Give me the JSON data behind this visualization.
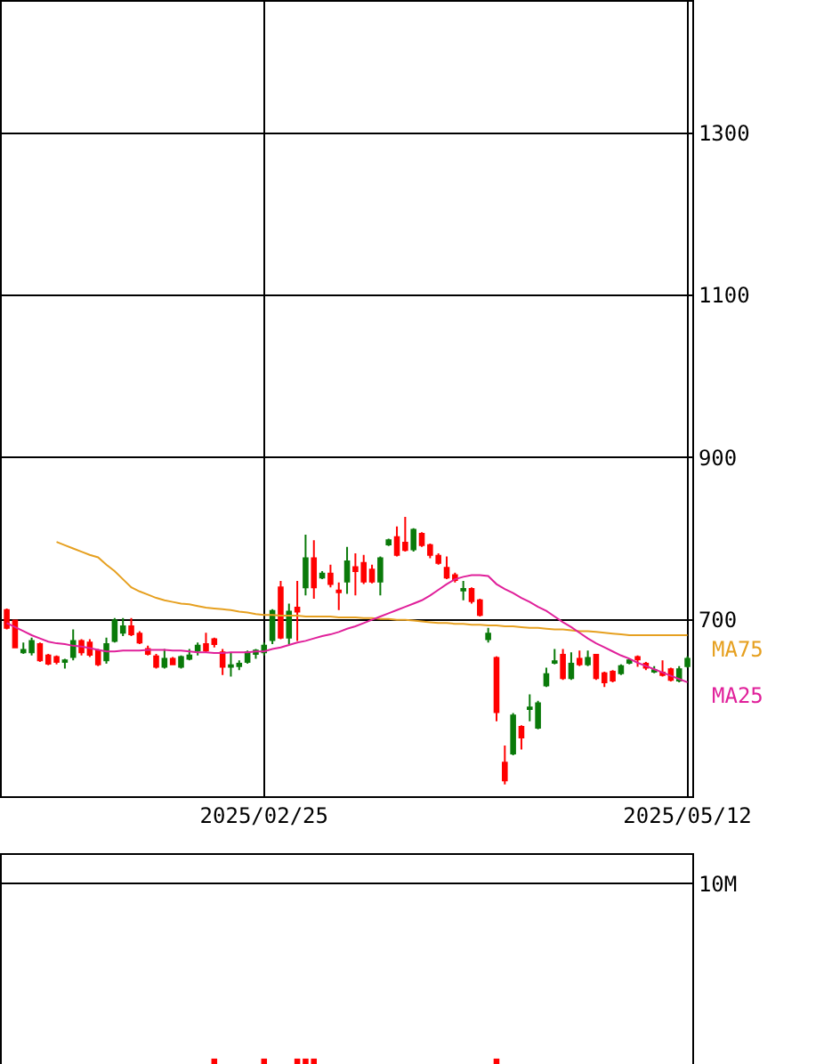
{
  "chart_data": [
    {
      "type": "candlestick",
      "categories": [
        null,
        null,
        null,
        null,
        null,
        null,
        null,
        null,
        null,
        null,
        null,
        null,
        null,
        null,
        null,
        null,
        null,
        null,
        null,
        null,
        null,
        null,
        null,
        null,
        null,
        null,
        null,
        null,
        null,
        null,
        null,
        "2025/02/25",
        null,
        null,
        null,
        null,
        null,
        null,
        null,
        null,
        null,
        null,
        null,
        null,
        null,
        null,
        null,
        null,
        null,
        null,
        null,
        null,
        null,
        null,
        null,
        null,
        null,
        null,
        null,
        null,
        null,
        null,
        null,
        null,
        null,
        null,
        null,
        null,
        null,
        null,
        null,
        null,
        null,
        null,
        null,
        null,
        null,
        null,
        null,
        null,
        null,
        null,
        "2025/05/12"
      ],
      "ohlc": [
        [
          712,
          714,
          688,
          690
        ],
        [
          699,
          700,
          665,
          666
        ],
        [
          660,
          672,
          658,
          663
        ],
        [
          660,
          678,
          656,
          674
        ],
        [
          670,
          672,
          648,
          650
        ],
        [
          656,
          658,
          644,
          646
        ],
        [
          654,
          656,
          645,
          648
        ],
        [
          648,
          652,
          640,
          650
        ],
        [
          654,
          688,
          650,
          674
        ],
        [
          674,
          676,
          656,
          660
        ],
        [
          672,
          676,
          654,
          657
        ],
        [
          662,
          664,
          643,
          645
        ],
        [
          650,
          678,
          646,
          670
        ],
        [
          674,
          702,
          672,
          699
        ],
        [
          684,
          702,
          680,
          692
        ],
        [
          692,
          702,
          680,
          682
        ],
        [
          683,
          686,
          670,
          672
        ],
        [
          664,
          668,
          656,
          658
        ],
        [
          655,
          658,
          640,
          642
        ],
        [
          642,
          664,
          640,
          652
        ],
        [
          652,
          654,
          644,
          645
        ],
        [
          642,
          656,
          640,
          654
        ],
        [
          652,
          664,
          650,
          656
        ],
        [
          662,
          672,
          656,
          668
        ],
        [
          670,
          684,
          660,
          662
        ],
        [
          676,
          678,
          666,
          670
        ],
        [
          660,
          664,
          632,
          642
        ],
        [
          642,
          660,
          630,
          644
        ],
        [
          643,
          650,
          638,
          646
        ],
        [
          648,
          662,
          646,
          660
        ],
        [
          658,
          664,
          652,
          662
        ],
        [
          660,
          672,
          656,
          668
        ],
        [
          675,
          713,
          670,
          711
        ],
        [
          740,
          748,
          676,
          678
        ],
        [
          678,
          720,
          670,
          710
        ],
        [
          715,
          748,
          674,
          710
        ],
        [
          740,
          805,
          730,
          776
        ],
        [
          776,
          798,
          726,
          740
        ],
        [
          752,
          760,
          750,
          757
        ],
        [
          757,
          768,
          740,
          744
        ],
        [
          736,
          746,
          712,
          734
        ],
        [
          747,
          790,
          732,
          772
        ],
        [
          765,
          782,
          730,
          760
        ],
        [
          770,
          780,
          744,
          747
        ],
        [
          762,
          768,
          745,
          747
        ],
        [
          747,
          778,
          730,
          776
        ],
        [
          793,
          800,
          791,
          798
        ],
        [
          802,
          815,
          778,
          780
        ],
        [
          795,
          827,
          784,
          786
        ],
        [
          787,
          813,
          784,
          811
        ],
        [
          806,
          808,
          790,
          792
        ],
        [
          792,
          794,
          776,
          780
        ],
        [
          779,
          782,
          768,
          770
        ],
        [
          764,
          778,
          750,
          752
        ],
        [
          755,
          758,
          746,
          749
        ],
        [
          736,
          748,
          724,
          738
        ],
        [
          738,
          740,
          720,
          723
        ],
        [
          724,
          726,
          704,
          706
        ],
        [
          676,
          690,
          672,
          683
        ],
        [
          653,
          655,
          575,
          586
        ],
        [
          524,
          545,
          497,
          502
        ],
        [
          535,
          585,
          533,
          582
        ],
        [
          568,
          570,
          540,
          555
        ],
        [
          590,
          608,
          575,
          592
        ],
        [
          567,
          600,
          565,
          597
        ],
        [
          619,
          641,
          617,
          633
        ],
        [
          647,
          664,
          645,
          649
        ],
        [
          657,
          664,
          626,
          628
        ],
        [
          628,
          660,
          626,
          646
        ],
        [
          652,
          662,
          643,
          645
        ],
        [
          645,
          662,
          643,
          653
        ],
        [
          657,
          658,
          626,
          628
        ],
        [
          634,
          636,
          617,
          623
        ],
        [
          636,
          638,
          623,
          625
        ],
        [
          634,
          645,
          632,
          643
        ],
        [
          647,
          652,
          645,
          650
        ],
        [
          654,
          656,
          642,
          651
        ],
        [
          646,
          648,
          638,
          641
        ],
        [
          636,
          643,
          634,
          638
        ],
        [
          635,
          650,
          630,
          632
        ],
        [
          639,
          641,
          624,
          626
        ],
        [
          625,
          643,
          623,
          639
        ],
        [
          643,
          655,
          641,
          652
        ]
      ],
      "colors": [
        "#ff0000",
        "#ff0000",
        "#0a7a0a",
        "#0a7a0a",
        "#ff0000",
        "#ff0000",
        "#ff0000",
        "#0a7a0a",
        "#0a7a0a",
        "#ff0000",
        "#ff0000",
        "#ff0000",
        "#0a7a0a",
        "#0a7a0a",
        "#0a7a0a",
        "#ff0000",
        "#ff0000",
        "#ff0000",
        "#ff0000",
        "#0a7a0a",
        "#ff0000",
        "#0a7a0a",
        "#0a7a0a",
        "#0a7a0a",
        "#ff0000",
        "#ff0000",
        "#ff0000",
        "#0a7a0a",
        "#0a7a0a",
        "#0a7a0a",
        "#0a7a0a",
        "#0a7a0a",
        "#0a7a0a",
        "#ff0000",
        "#0a7a0a",
        "#ff0000",
        "#0a7a0a",
        "#ff0000",
        "#0a7a0a",
        "#ff0000",
        "#ff0000",
        "#0a7a0a",
        "#ff0000",
        "#ff0000",
        "#ff0000",
        "#0a7a0a",
        "#0a7a0a",
        "#ff0000",
        "#ff0000",
        "#0a7a0a",
        "#ff0000",
        "#ff0000",
        "#ff0000",
        "#ff0000",
        "#ff0000",
        "#0a7a0a",
        "#ff0000",
        "#ff0000",
        "#0a7a0a",
        "#ff0000",
        "#ff0000",
        "#0a7a0a",
        "#ff0000",
        "#0a7a0a",
        "#0a7a0a",
        "#0a7a0a",
        "#0a7a0a",
        "#ff0000",
        "#0a7a0a",
        "#ff0000",
        "#0a7a0a",
        "#ff0000",
        "#ff0000",
        "#ff0000",
        "#0a7a0a",
        "#0a7a0a",
        "#ff0000",
        "#ff0000",
        "#0a7a0a",
        "#ff0000",
        "#ff0000",
        "#0a7a0a",
        "#0a7a0a"
      ],
      "series": [
        {
          "type": "line",
          "name": "MA75",
          "color": "#e6a020",
          "values": [
            null,
            null,
            null,
            null,
            null,
            null,
            796,
            792,
            788,
            784,
            780,
            777,
            768,
            760,
            750,
            740,
            735,
            731,
            727,
            724,
            722,
            720,
            719,
            717,
            715,
            714,
            713,
            712,
            710,
            709,
            707,
            706,
            706,
            705,
            705,
            705,
            704,
            704,
            704,
            704,
            703,
            703,
            703,
            702,
            702,
            701,
            701,
            700,
            700,
            699,
            698,
            697,
            696,
            696,
            695,
            695,
            694,
            694,
            693,
            693,
            692,
            692,
            691,
            690,
            690,
            689,
            688,
            688,
            687,
            686,
            686,
            685,
            684,
            683,
            682,
            681,
            681,
            681,
            681,
            681,
            681,
            681,
            681
          ]
        },
        {
          "type": "line",
          "name": "MA25",
          "color": "#e0209a",
          "values": [
            696,
            691,
            686,
            681,
            677,
            673,
            671,
            670,
            668,
            667,
            665,
            663,
            661,
            661,
            662,
            662,
            662,
            663,
            663,
            663,
            662,
            662,
            661,
            660,
            660,
            659,
            659,
            660,
            660,
            660,
            661,
            661,
            664,
            666,
            669,
            672,
            674,
            677,
            680,
            682,
            685,
            689,
            692,
            696,
            700,
            704,
            708,
            712,
            716,
            720,
            724,
            730,
            737,
            744,
            750,
            753,
            755,
            755,
            754,
            744,
            738,
            733,
            727,
            722,
            716,
            711,
            704,
            697,
            691,
            684,
            677,
            671,
            666,
            661,
            656,
            652,
            647,
            643,
            639,
            635,
            631,
            627,
            623
          ]
        }
      ],
      "ylim": [
        483,
        1462
      ],
      "yticks": [
        700,
        900,
        1100,
        1300
      ],
      "grid": true
    },
    {
      "type": "bar",
      "categories": [
        null,
        null,
        null,
        null,
        null,
        null,
        null,
        null,
        null,
        null,
        null,
        null,
        null,
        null,
        null,
        null,
        null,
        null,
        null,
        null,
        null,
        null,
        null,
        null,
        null,
        null,
        null,
        null,
        null,
        null,
        null,
        "2025/02/25",
        null,
        null,
        null,
        null,
        null,
        null,
        null,
        null,
        null,
        null,
        null,
        null,
        null,
        null,
        null,
        null,
        null,
        null,
        null,
        null,
        null,
        null,
        null,
        null,
        null,
        null,
        null,
        null,
        null,
        null,
        null,
        null,
        null,
        null,
        null,
        null,
        null,
        null,
        null,
        null,
        null,
        null,
        null,
        null,
        null,
        null,
        null,
        null,
        null,
        null,
        "2025/05/12"
      ],
      "values": [
        null,
        null,
        null,
        null,
        null,
        null,
        null,
        null,
        null,
        null,
        null,
        null,
        null,
        null,
        null,
        null,
        null,
        null,
        null,
        null,
        null,
        null,
        null,
        null,
        null,
        300000,
        null,
        null,
        null,
        null,
        null,
        300000,
        null,
        null,
        null,
        300000,
        300000,
        300000,
        null,
        null,
        null,
        null,
        null,
        null,
        null,
        null,
        null,
        null,
        null,
        null,
        null,
        null,
        null,
        null,
        null,
        null,
        null,
        null,
        null,
        300000,
        null,
        null,
        null,
        null,
        null,
        null,
        null,
        null,
        null,
        null,
        null,
        null,
        null,
        null,
        null,
        null,
        null,
        null,
        null,
        null,
        null,
        null,
        null
      ],
      "color": "#ff0000",
      "ylim": [
        0,
        11600000
      ],
      "yticks": [
        {
          "value": 10000000,
          "label": "10M"
        }
      ],
      "grid": "y",
      "tick_labels": "y"
    }
  ]
}
